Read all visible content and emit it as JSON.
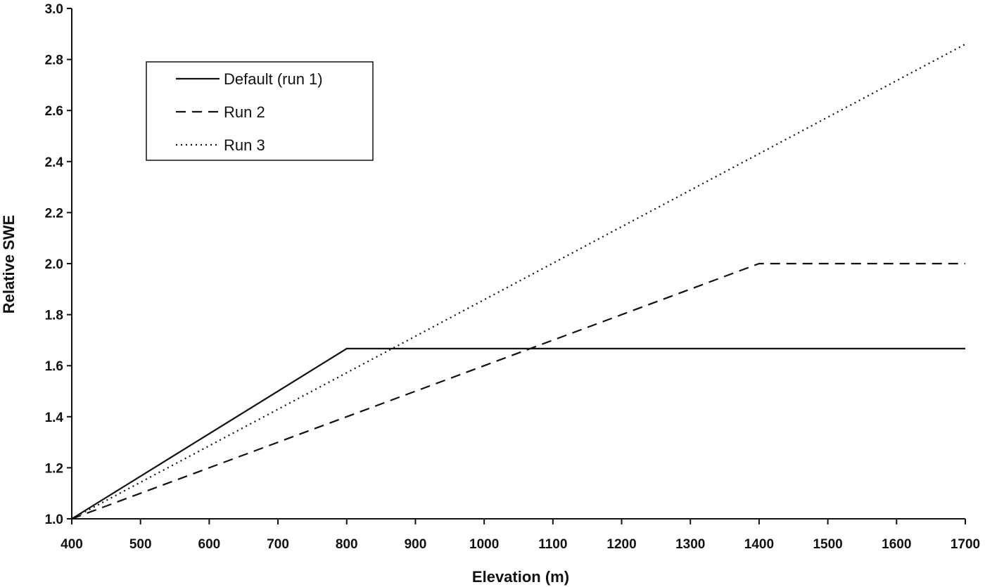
{
  "chart_data": {
    "type": "line",
    "title": "",
    "xlabel": "Elevation (m)",
    "ylabel": "Relative SWE",
    "xlim": [
      400,
      1700
    ],
    "ylim": [
      1.0,
      3.0
    ],
    "x_ticks": [
      400,
      500,
      600,
      700,
      800,
      900,
      1000,
      1100,
      1200,
      1300,
      1400,
      1500,
      1600,
      1700
    ],
    "y_ticks": [
      1.0,
      1.2,
      1.4,
      1.6,
      1.8,
      2.0,
      2.2,
      2.4,
      2.6,
      2.8,
      3.0
    ],
    "grid": false,
    "legend_position": "top-left",
    "series": [
      {
        "name": "Default (run 1)",
        "style": "solid",
        "color": "#111111",
        "points": [
          [
            400,
            1.0
          ],
          [
            800,
            1.667
          ],
          [
            1700,
            1.667
          ]
        ]
      },
      {
        "name": "Run 2",
        "style": "dashed",
        "color": "#111111",
        "points": [
          [
            400,
            1.0
          ],
          [
            1400,
            2.0
          ],
          [
            1700,
            2.0
          ]
        ]
      },
      {
        "name": "Run 3",
        "style": "dotted",
        "color": "#111111",
        "points": [
          [
            400,
            1.0
          ],
          [
            1700,
            2.86
          ]
        ]
      }
    ]
  }
}
